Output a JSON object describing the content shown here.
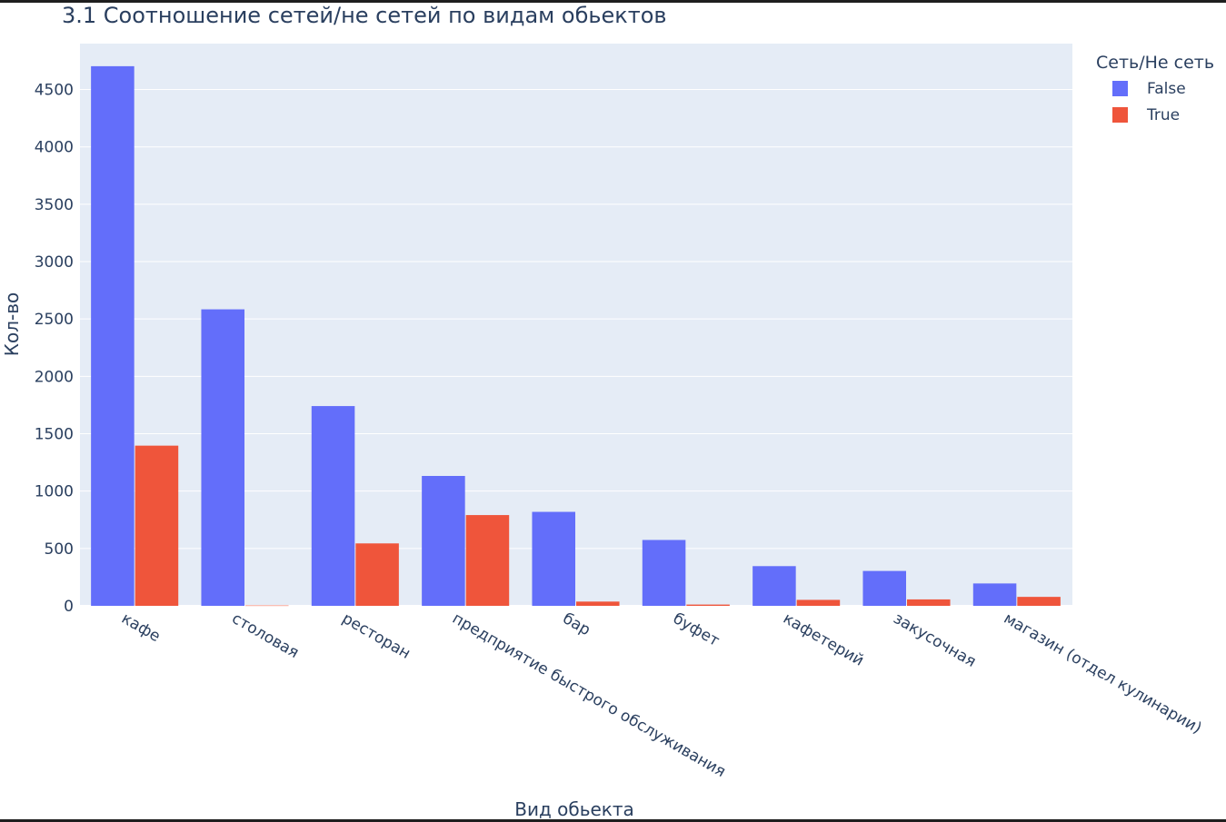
{
  "chart_data": {
    "type": "bar",
    "title": "3.1 Соотношение сетей/не сетей по видам обьектов",
    "xlabel": "Вид обьекта",
    "ylabel": "Кол-во",
    "legend_title": "Сеть/Не сеть",
    "legend_position": "top-right",
    "grid": true,
    "ylim": [
      0,
      4900
    ],
    "yticks": [
      0,
      500,
      1000,
      1500,
      2000,
      2500,
      3000,
      3500,
      4000,
      4500
    ],
    "categories": [
      "кафе",
      "столовая",
      "ресторан",
      "предприятие быстрого обслуживания",
      "бар",
      "буфет",
      "кафетерий",
      "закусочная",
      "магазин (отдел кулинарии)"
    ],
    "series": [
      {
        "name": "False",
        "color": "#636efa",
        "values": [
          4703,
          2584,
          1741,
          1132,
          819,
          574,
          346,
          304,
          195
        ]
      },
      {
        "name": "True",
        "color": "#ef553b",
        "values": [
          1396,
          3,
          544,
          791,
          37,
          11,
          52,
          56,
          78
        ]
      }
    ]
  },
  "colors": {
    "plot_bg": "#e5ecf6",
    "grid": "#ffffff",
    "text": "#2a3f5f"
  }
}
